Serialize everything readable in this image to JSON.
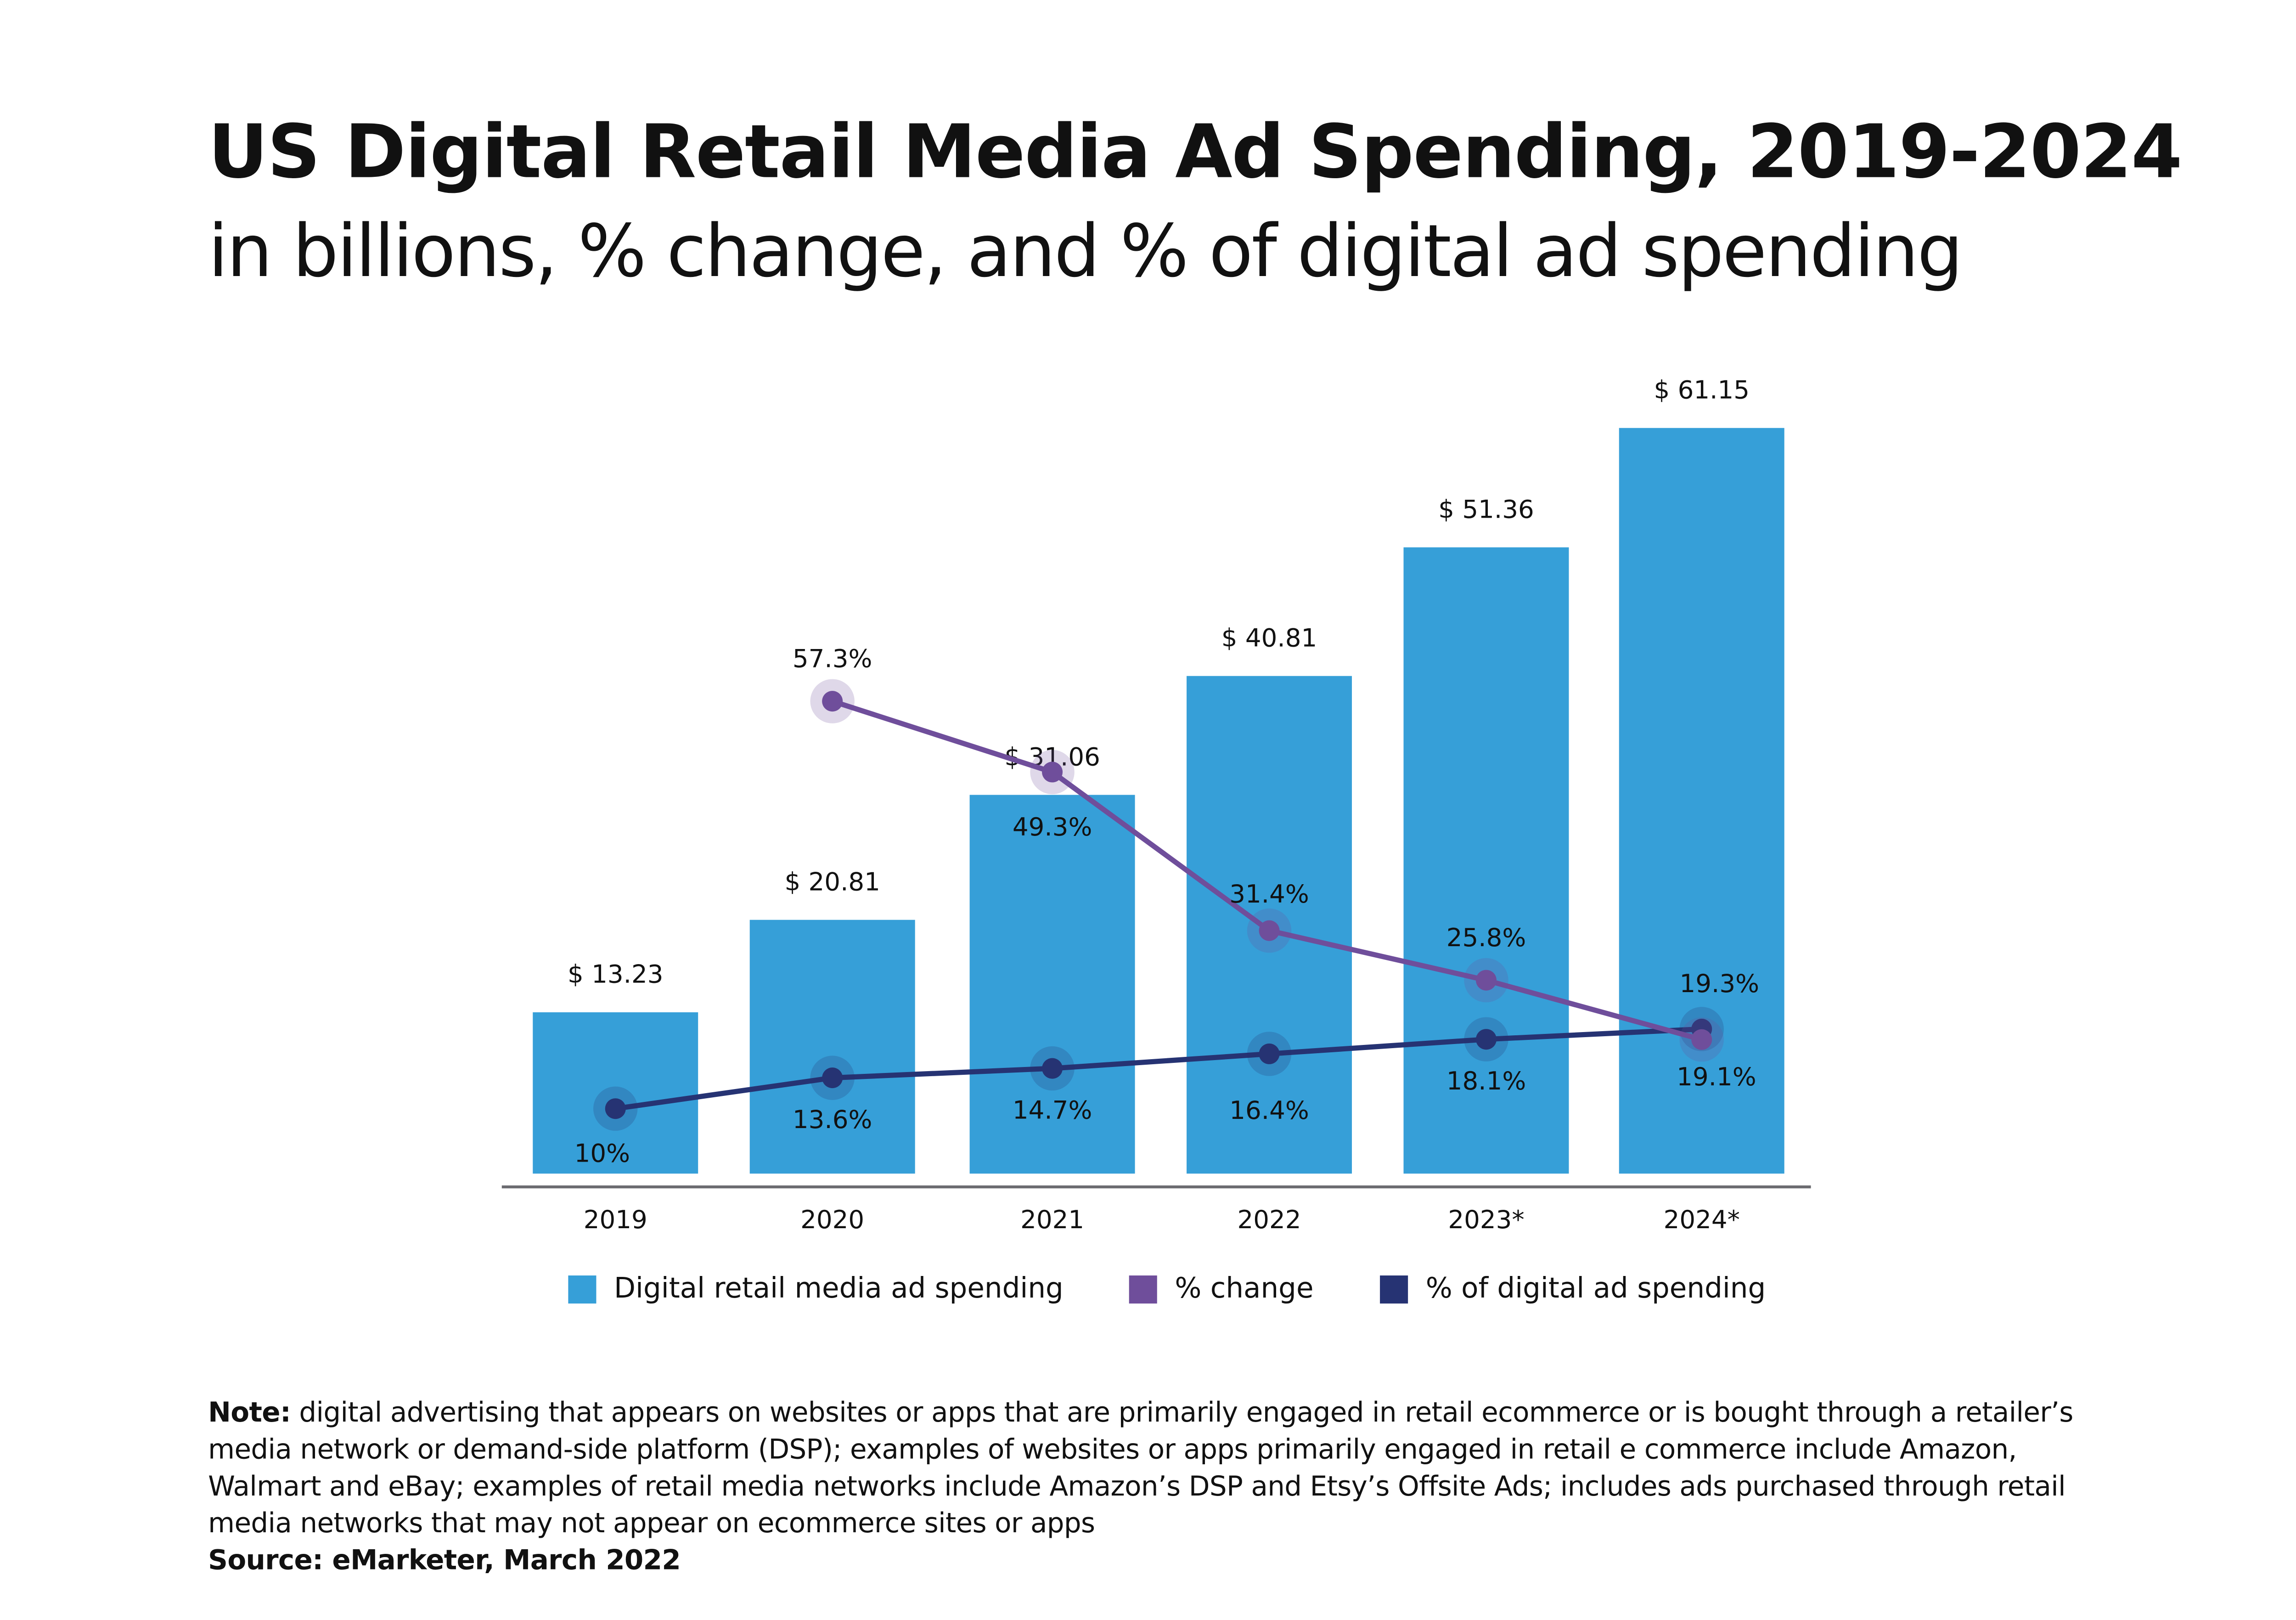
{
  "title": "US Digital Retail Media Ad Spending, 2019-2024",
  "subtitle": "in billions, % change, and % of digital ad spending",
  "chart_data": {
    "type": "bar",
    "categories": [
      "2019",
      "2020",
      "2021",
      "2022",
      "2023*",
      "2024*"
    ],
    "series": [
      {
        "name": "Digital retail media ad spending",
        "type": "bar",
        "values": [
          13.23,
          20.81,
          31.06,
          40.81,
          51.36,
          61.15
        ],
        "labels": [
          "$ 13.23",
          "$ 20.81",
          "$ 31.06",
          "$ 40.81",
          "$ 51.36",
          "$ 61.15"
        ],
        "color": "#369fd8"
      },
      {
        "name": "% change",
        "type": "line",
        "values": [
          null,
          57.3,
          49.3,
          31.4,
          25.8,
          19.1
        ],
        "labels": [
          "",
          "57.3%",
          "49.3%",
          "31.4%",
          "25.8%",
          "19.1%"
        ],
        "color": "#6f4e9b"
      },
      {
        "name": "% of digital ad spending",
        "type": "line",
        "values": [
          10,
          13.6,
          14.7,
          16.4,
          18.1,
          19.3
        ],
        "labels": [
          "10%",
          "13.6%",
          "14.7%",
          "16.4%",
          "18.1%",
          "19.3%"
        ],
        "color": "#263373"
      }
    ],
    "grid": false,
    "legend": "bottom"
  },
  "note_label": "Note:",
  "note_text": " digital advertising that appears on websites or apps that are primarily engaged in retail ecommerce or is bought through a retailer’s media network or demand-side platform (DSP); examples of websites or apps primarily engaged in retail e commerce include Amazon, Walmart and eBay; examples of retail media networks include Amazon’s DSP and Etsy’s Offsite Ads; includes ads purchased through retail media networks that may not appear on ecommerce sites or apps",
  "source": "Source: eMarketer, March 2022"
}
